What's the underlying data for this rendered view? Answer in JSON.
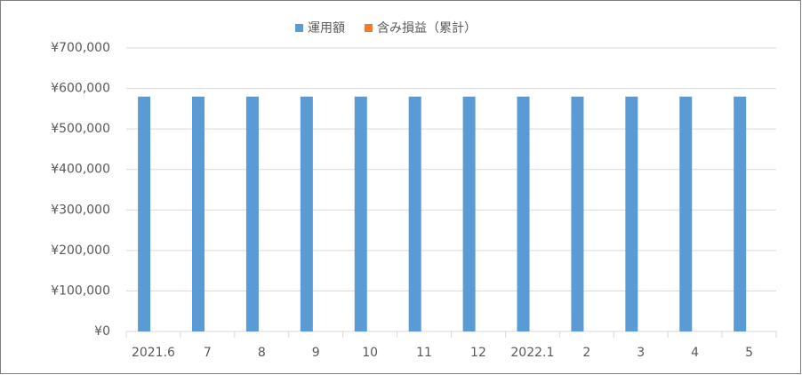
{
  "chart_data": {
    "type": "bar",
    "categories": [
      "2021.6",
      "7",
      "8",
      "9",
      "10",
      "11",
      "12",
      "2022.1",
      "2",
      "3",
      "4",
      "5"
    ],
    "series": [
      {
        "name": "運用額",
        "color": "#5b9bd5",
        "values": [
          580000,
          580000,
          580000,
          580000,
          580000,
          580000,
          580000,
          580000,
          580000,
          580000,
          580000,
          580000
        ]
      },
      {
        "name": "含み損益（累計）",
        "color": "#ed7d31",
        "values": [
          0,
          0,
          0,
          0,
          0,
          0,
          0,
          0,
          0,
          0,
          0,
          0
        ]
      }
    ],
    "ylim": [
      0,
      700000
    ],
    "yticks": [
      {
        "value": 0,
        "label": "¥0"
      },
      {
        "value": 100000,
        "label": "¥100,000"
      },
      {
        "value": 200000,
        "label": "¥200,000"
      },
      {
        "value": 300000,
        "label": "¥300,000"
      },
      {
        "value": 400000,
        "label": "¥400,000"
      },
      {
        "value": 500000,
        "label": "¥500,000"
      },
      {
        "value": 600000,
        "label": "¥600,000"
      },
      {
        "value": 700000,
        "label": "¥700,000"
      }
    ],
    "grid": true,
    "legend": "top"
  }
}
